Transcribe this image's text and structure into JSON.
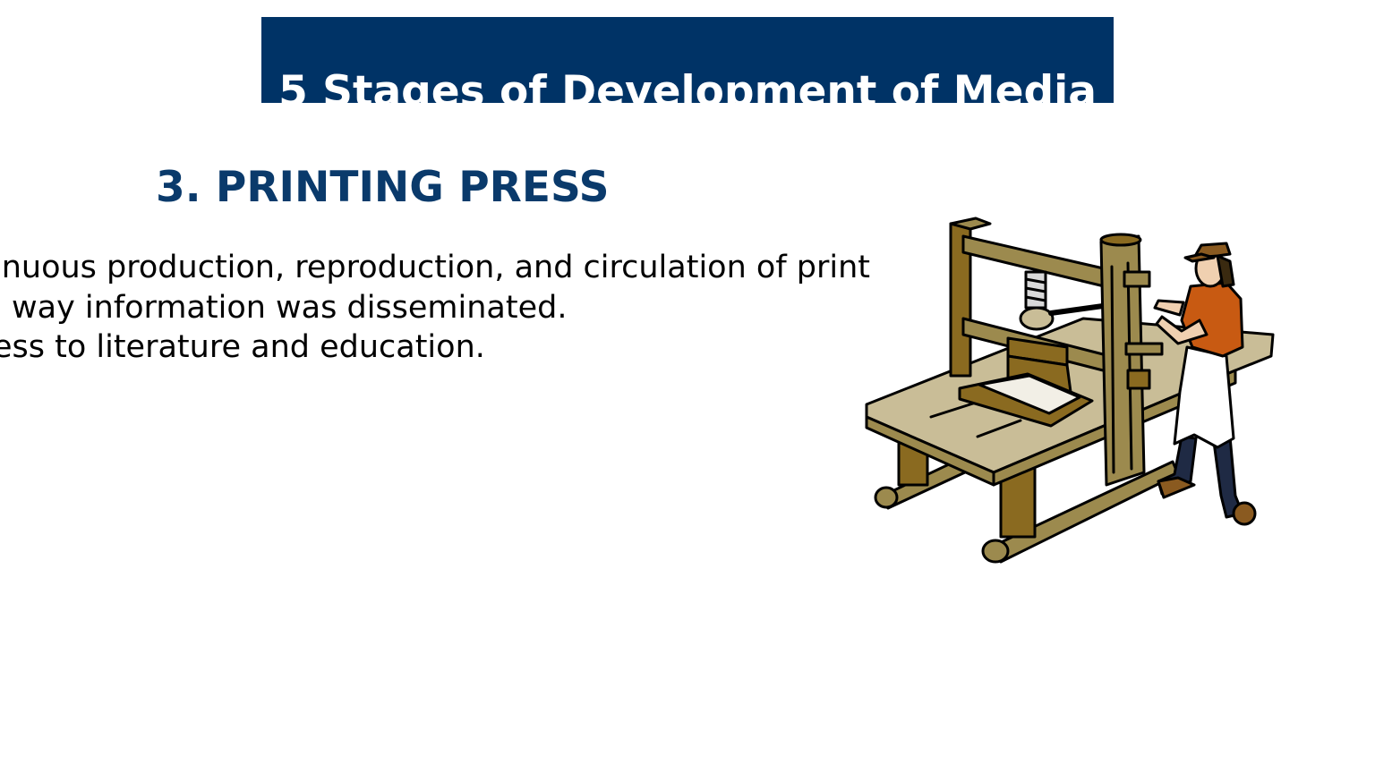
{
  "slide": {
    "title": "5 Stages of Development of Media",
    "section_heading": "3. PRINTING PRESS",
    "body_lines": [
      "inuous production, reproduction, and circulation of print",
      "way information was disseminated.",
      "ess to literature and education."
    ],
    "illustration": "printing-press-with-printer-icon"
  },
  "colors": {
    "title_background": "#003366",
    "title_text": "#ffffff",
    "heading_text": "#0a3a6b",
    "body_text": "#000000"
  }
}
